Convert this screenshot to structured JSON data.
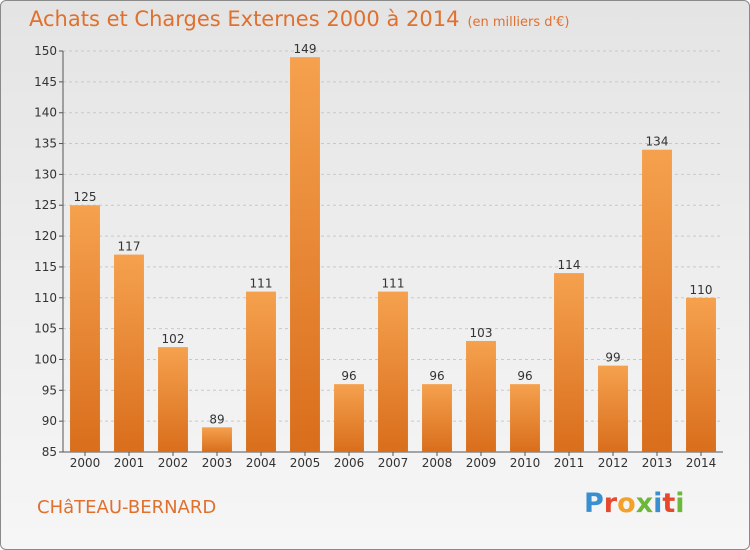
{
  "chart_data": {
    "type": "bar",
    "title": "Achats et Charges Externes 2000 à 2014",
    "subtitle": "(en milliers d'€)",
    "categories": [
      "2000",
      "2001",
      "2002",
      "2003",
      "2004",
      "2005",
      "2006",
      "2007",
      "2008",
      "2009",
      "2010",
      "2011",
      "2012",
      "2013",
      "2014"
    ],
    "values": [
      125,
      117,
      102,
      89,
      111,
      149,
      96,
      111,
      96,
      103,
      96,
      114,
      99,
      134,
      110
    ],
    "xlabel": "",
    "ylabel": "",
    "ylim": [
      85,
      150
    ],
    "yticks": [
      85,
      90,
      95,
      100,
      105,
      110,
      115,
      120,
      125,
      130,
      135,
      140,
      145,
      150
    ],
    "grid": true,
    "legend": "none"
  },
  "footer": {
    "town": "CHâTEAU-BERNARD",
    "brand": "Proxiti"
  },
  "colors": {
    "bar_top": "#f5a14e",
    "bar_bottom": "#d96e1c",
    "title": "#e0702e",
    "grid": "#c8c8c8",
    "axis_text": "#333333",
    "brand_letters": [
      "#3a8fd0",
      "#e64a2e",
      "#f2a22a",
      "#6bb83a",
      "#3a8fd0",
      "#e64a2e",
      "#6bb83a"
    ]
  }
}
